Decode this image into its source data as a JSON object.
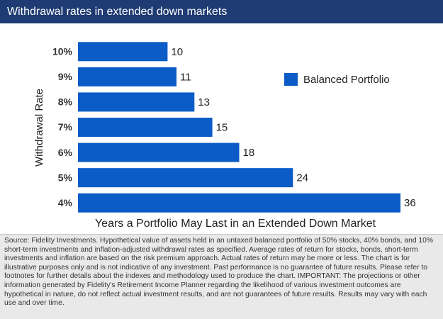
{
  "chart_data": {
    "type": "bar",
    "orientation": "horizontal",
    "title": "Withdrawal rates in extended down markets",
    "categories": [
      "10%",
      "9%",
      "8%",
      "7%",
      "6%",
      "5%",
      "4%"
    ],
    "series": [
      {
        "name": "Balanced Portfolio",
        "color": "#0b5cc7",
        "values": [
          10,
          11,
          13,
          15,
          18,
          24,
          36
        ]
      }
    ],
    "y_label": "Withdrawal Rate",
    "x_label": "Years a Portfolio May Last in an Extended Down Market",
    "footnote": "Source: Fidelity Investments. Hypothetical value of assets held in an untaxed balanced portfolio of 50% stocks, 40% bonds, and 10% short-term investments and inflation-adjusted withdrawal rates as specified. Average rates of return for stocks, bonds, short-term investments and inflation are based on the risk premium approach. Actual rates of return may be more or less. The chart is for illustrative purposes only and is not indicative of any investment. Past performance is no guarantee of future results. Please refer to footnotes for further details about the indexes and methodology used to produce the chart. IMPORTANT: The projections or other information generated by Fidelity's Retirement Income Planner regarding the likelihood of various investment outcomes are hypothetical in nature, do not reflect actual investment results, and are not guarantees of future results. Results may vary with each use and over time."
  }
}
